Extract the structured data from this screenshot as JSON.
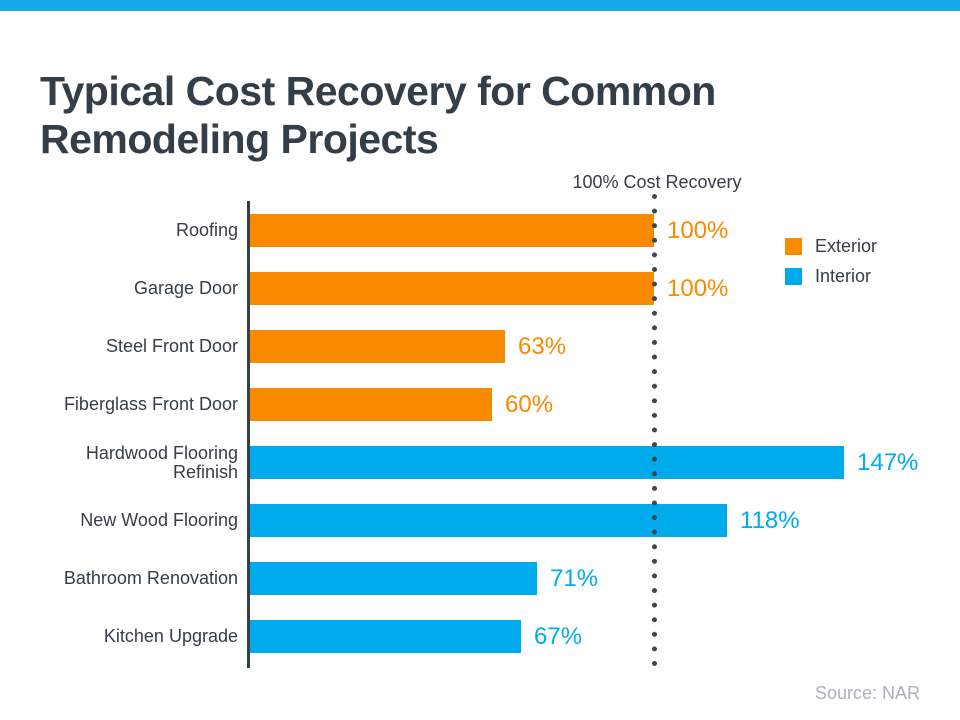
{
  "page": {
    "title_line1": "Typical Cost Recovery for Common",
    "title_line2": "Remodeling Projects",
    "source": "Source: NAR"
  },
  "colors": {
    "top_strip": "#18a8ec",
    "exterior": "#f98a00",
    "interior": "#00abeb",
    "axis_and_dots": "#3c4650",
    "dark_text": "#333e48",
    "source_text": "#a8b1b9"
  },
  "chart_data": {
    "type": "bar",
    "orientation": "horizontal",
    "title": "Typical Cost Recovery for Common Remodeling Projects",
    "categories": [
      "Roofing",
      "Garage Door",
      "Steel Front Door",
      "Fiberglass Front Door",
      "Hardwood Flooring Refinish",
      "New Wood Flooring",
      "Bathroom Renovation",
      "Kitchen Upgrade"
    ],
    "values": [
      100,
      100,
      63,
      60,
      147,
      118,
      71,
      67
    ],
    "value_labels": [
      "100%",
      "100%",
      "63%",
      "60%",
      "147%",
      "118%",
      "71%",
      "67%"
    ],
    "groups": [
      "Exterior",
      "Exterior",
      "Exterior",
      "Exterior",
      "Interior",
      "Interior",
      "Interior",
      "Interior"
    ],
    "unit": "percent",
    "xlim": [
      0,
      165
    ],
    "grid": false,
    "reference_line": {
      "value": 100,
      "label": "100% Cost Recovery",
      "style": "dotted-vertical"
    },
    "legend": [
      {
        "label": "Exterior",
        "color": "#f98a00"
      },
      {
        "label": "Interior",
        "color": "#00abeb"
      }
    ],
    "legend_position": "right",
    "source": "Source: NAR"
  }
}
